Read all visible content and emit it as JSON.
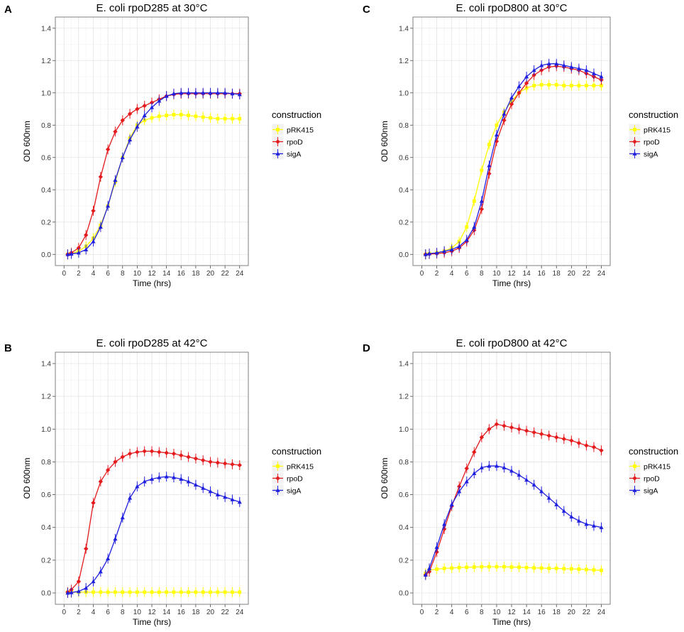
{
  "figure": {
    "legend_title": "construction",
    "xlabel": "Time (hrs)",
    "ylabel": "OD 600nm",
    "series_names": [
      "pRK415",
      "rpoD",
      "sigA"
    ],
    "colors": {
      "pRK415": "#ffff00",
      "rpoD": "#e41a1c",
      "sigA": "#1f1fe0"
    },
    "markers": {
      "pRK415": "square",
      "rpoD": "diamond",
      "sigA": "triangle"
    }
  },
  "chart_data": [
    {
      "panel": "A",
      "type": "line",
      "title": "E. coli rpoD285 at 30°C",
      "xlabel": "Time (hrs)",
      "ylabel": "OD 600nm",
      "xlim": [
        0,
        24
      ],
      "ylim": [
        0,
        1.4
      ],
      "xticks": [
        "0",
        "2",
        "4",
        "6",
        "8",
        "10",
        "12",
        "14",
        "16",
        "18",
        "20",
        "22",
        "24"
      ],
      "yticks": [
        "0.0",
        "0.2",
        "0.4",
        "0.6",
        "0.8",
        "1.0",
        "1.2",
        "1.4"
      ],
      "legend": [
        "pRK415",
        "rpoD",
        "sigA"
      ],
      "x": [
        0.5,
        1,
        2,
        3,
        4,
        5,
        6,
        7,
        8,
        9,
        10,
        11,
        12,
        13,
        14,
        15,
        16,
        17,
        18,
        19,
        20,
        21,
        22,
        23,
        24
      ],
      "series": [
        {
          "name": "pRK415",
          "values": [
            0.0,
            0.005,
            0.02,
            0.05,
            0.1,
            0.18,
            0.3,
            0.45,
            0.6,
            0.72,
            0.8,
            0.83,
            0.845,
            0.855,
            0.86,
            0.865,
            0.865,
            0.86,
            0.855,
            0.85,
            0.845,
            0.84,
            0.84,
            0.84,
            0.84
          ]
        },
        {
          "name": "rpoD",
          "values": [
            0.0,
            0.01,
            0.04,
            0.12,
            0.27,
            0.48,
            0.65,
            0.76,
            0.83,
            0.87,
            0.9,
            0.92,
            0.94,
            0.96,
            0.98,
            0.99,
            0.995,
            0.995,
            0.995,
            0.995,
            0.995,
            0.995,
            0.995,
            0.995,
            0.995
          ]
        },
        {
          "name": "sigA",
          "values": [
            0.0,
            0.003,
            0.01,
            0.03,
            0.08,
            0.17,
            0.3,
            0.46,
            0.6,
            0.71,
            0.79,
            0.86,
            0.91,
            0.95,
            0.98,
            0.995,
            1.0,
            1.0,
            1.0,
            1.0,
            1.0,
            1.0,
            1.0,
            0.995,
            0.99
          ]
        }
      ]
    },
    {
      "panel": "B",
      "type": "line",
      "title": "E. coli rpoD285 at 42°C",
      "xlabel": "Time (hrs)",
      "ylabel": "OD 600nm",
      "xlim": [
        0,
        24
      ],
      "ylim": [
        0,
        1.4
      ],
      "xticks": [
        "0",
        "2",
        "4",
        "6",
        "8",
        "10",
        "12",
        "14",
        "16",
        "18",
        "20",
        "22",
        "24"
      ],
      "yticks": [
        "0.0",
        "0.2",
        "0.4",
        "0.6",
        "0.8",
        "1.0",
        "1.2",
        "1.4"
      ],
      "legend": [
        "pRK415",
        "rpoD",
        "sigA"
      ],
      "x": [
        0.5,
        1,
        2,
        3,
        4,
        5,
        6,
        7,
        8,
        9,
        10,
        11,
        12,
        13,
        14,
        15,
        16,
        17,
        18,
        19,
        20,
        21,
        22,
        23,
        24
      ],
      "series": [
        {
          "name": "pRK415",
          "values": [
            0.005,
            0.005,
            0.005,
            0.005,
            0.005,
            0.005,
            0.005,
            0.005,
            0.005,
            0.005,
            0.005,
            0.005,
            0.005,
            0.005,
            0.005,
            0.005,
            0.005,
            0.005,
            0.005,
            0.005,
            0.005,
            0.005,
            0.005,
            0.005,
            0.005
          ]
        },
        {
          "name": "rpoD",
          "values": [
            0.005,
            0.02,
            0.07,
            0.27,
            0.55,
            0.68,
            0.75,
            0.8,
            0.83,
            0.85,
            0.86,
            0.865,
            0.865,
            0.86,
            0.855,
            0.85,
            0.84,
            0.83,
            0.82,
            0.81,
            0.8,
            0.795,
            0.79,
            0.785,
            0.78
          ]
        },
        {
          "name": "sigA",
          "values": [
            0.0,
            0.003,
            0.01,
            0.03,
            0.07,
            0.13,
            0.21,
            0.33,
            0.46,
            0.58,
            0.65,
            0.68,
            0.695,
            0.705,
            0.71,
            0.705,
            0.695,
            0.68,
            0.66,
            0.64,
            0.62,
            0.6,
            0.585,
            0.57,
            0.555
          ]
        }
      ]
    },
    {
      "panel": "C",
      "type": "line",
      "title": "E. coli rpoD800 at 30°C",
      "xlabel": "Time (hrs)",
      "ylabel": "OD 600nm",
      "xlim": [
        0,
        24
      ],
      "ylim": [
        0,
        1.4
      ],
      "xticks": [
        "0",
        "2",
        "4",
        "6",
        "8",
        "10",
        "12",
        "14",
        "16",
        "18",
        "20",
        "22",
        "24"
      ],
      "yticks": [
        "0.0",
        "0.2",
        "0.4",
        "0.6",
        "0.8",
        "1.0",
        "1.2",
        "1.4"
      ],
      "legend": [
        "pRK415",
        "rpoD",
        "sigA"
      ],
      "x": [
        0.5,
        1,
        2,
        3,
        4,
        5,
        6,
        7,
        8,
        9,
        10,
        11,
        12,
        13,
        14,
        15,
        16,
        17,
        18,
        19,
        20,
        21,
        22,
        23,
        24
      ],
      "series": [
        {
          "name": "pRK415",
          "values": [
            0.0,
            0.005,
            0.01,
            0.02,
            0.04,
            0.08,
            0.17,
            0.33,
            0.52,
            0.68,
            0.8,
            0.88,
            0.95,
            1.0,
            1.03,
            1.045,
            1.05,
            1.05,
            1.05,
            1.045,
            1.045,
            1.045,
            1.045,
            1.045,
            1.045
          ]
        },
        {
          "name": "rpoD",
          "values": [
            0.0,
            0.002,
            0.005,
            0.01,
            0.02,
            0.04,
            0.08,
            0.15,
            0.28,
            0.5,
            0.7,
            0.83,
            0.93,
            1.0,
            1.06,
            1.11,
            1.14,
            1.16,
            1.165,
            1.16,
            1.15,
            1.14,
            1.12,
            1.1,
            1.08
          ]
        },
        {
          "name": "sigA",
          "values": [
            0.0,
            0.005,
            0.01,
            0.02,
            0.03,
            0.05,
            0.09,
            0.17,
            0.33,
            0.55,
            0.74,
            0.87,
            0.97,
            1.04,
            1.1,
            1.14,
            1.17,
            1.18,
            1.18,
            1.17,
            1.16,
            1.15,
            1.14,
            1.12,
            1.1
          ]
        }
      ]
    },
    {
      "panel": "D",
      "type": "line",
      "title": "E. coli rpoD800 at 42°C",
      "xlabel": "Time (hrs)",
      "ylabel": "OD 600nm",
      "xlim": [
        0,
        24
      ],
      "ylim": [
        0,
        1.4
      ],
      "xticks": [
        "0",
        "2",
        "4",
        "6",
        "8",
        "10",
        "12",
        "14",
        "16",
        "18",
        "20",
        "22",
        "24"
      ],
      "yticks": [
        "0.0",
        "0.2",
        "0.4",
        "0.6",
        "0.8",
        "1.0",
        "1.2",
        "1.4"
      ],
      "legend": [
        "pRK415",
        "rpoD",
        "sigA"
      ],
      "x": [
        0.5,
        1,
        2,
        3,
        4,
        5,
        6,
        7,
        8,
        9,
        10,
        11,
        12,
        13,
        14,
        15,
        16,
        17,
        18,
        19,
        20,
        21,
        22,
        23,
        24
      ],
      "series": [
        {
          "name": "pRK415",
          "values": [
            0.12,
            0.14,
            0.145,
            0.15,
            0.152,
            0.155,
            0.157,
            0.158,
            0.16,
            0.16,
            0.16,
            0.16,
            0.158,
            0.157,
            0.155,
            0.153,
            0.152,
            0.15,
            0.15,
            0.148,
            0.147,
            0.145,
            0.143,
            0.14,
            0.138
          ]
        },
        {
          "name": "rpoD",
          "values": [
            0.11,
            0.13,
            0.25,
            0.39,
            0.53,
            0.65,
            0.76,
            0.86,
            0.95,
            1.0,
            1.03,
            1.02,
            1.01,
            1.0,
            0.99,
            0.98,
            0.97,
            0.96,
            0.95,
            0.94,
            0.93,
            0.915,
            0.9,
            0.89,
            0.87
          ]
        },
        {
          "name": "sigA",
          "values": [
            0.11,
            0.15,
            0.28,
            0.42,
            0.54,
            0.62,
            0.68,
            0.73,
            0.765,
            0.775,
            0.775,
            0.765,
            0.745,
            0.72,
            0.69,
            0.66,
            0.62,
            0.58,
            0.54,
            0.5,
            0.465,
            0.44,
            0.42,
            0.41,
            0.4
          ]
        }
      ]
    }
  ]
}
